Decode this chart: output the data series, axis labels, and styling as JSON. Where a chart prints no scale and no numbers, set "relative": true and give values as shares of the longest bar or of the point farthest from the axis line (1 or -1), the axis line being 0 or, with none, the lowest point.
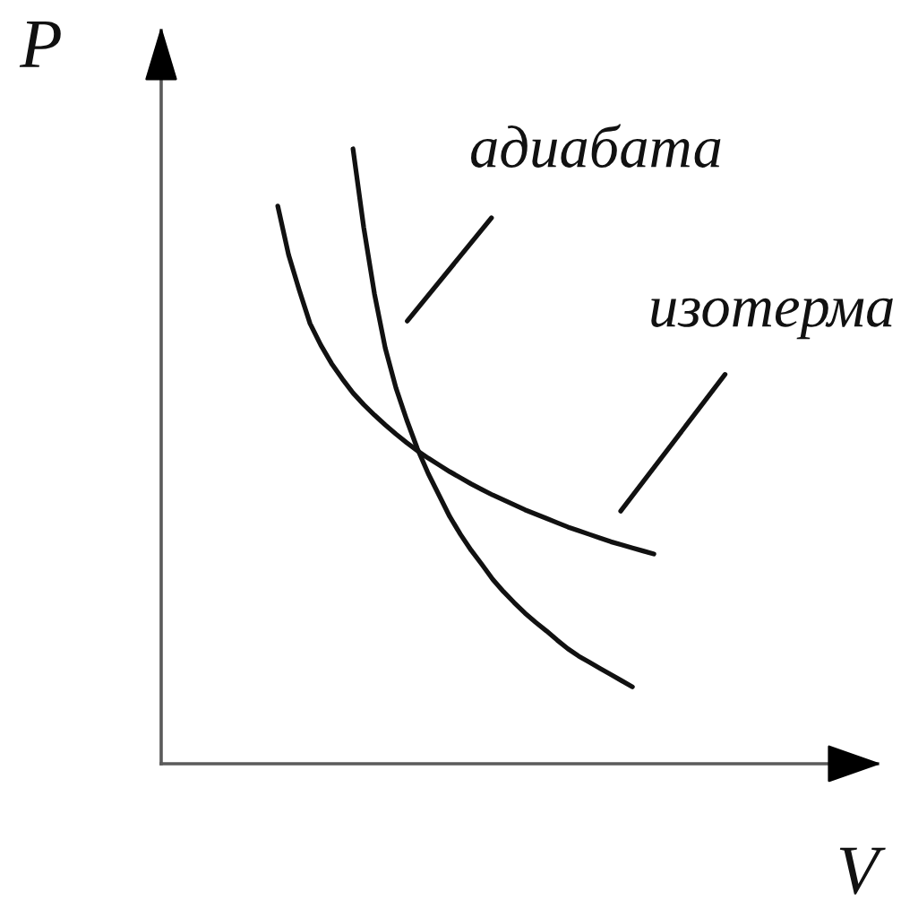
{
  "chart_data": {
    "type": "line",
    "xlabel": "V",
    "ylabel": "P",
    "relative": true,
    "categories": [
      null,
      null,
      null,
      null,
      null,
      null,
      null,
      null,
      null,
      null,
      null,
      null,
      null,
      null,
      null,
      null,
      null,
      null,
      null,
      null,
      null,
      null,
      null,
      null,
      null,
      null,
      null,
      null,
      null,
      null,
      null,
      null,
      null,
      null,
      null,
      null
    ],
    "series": [
      {
        "name": "адиабата",
        "color": "#111111",
        "values": [
          null,
          null,
          null,
          null,
          null,
          null,
          null,
          1.0,
          0.872,
          0.764,
          0.676,
          0.611,
          0.559,
          0.512,
          0.472,
          0.437,
          0.402,
          0.373,
          0.347,
          0.324,
          0.3,
          0.28,
          0.262,
          0.245,
          0.23,
          0.216,
          0.201,
          0.187,
          0.175,
          0.165,
          0.155,
          0.145,
          0.135,
          0.125,
          null,
          null
        ]
      },
      {
        "name": "изотерма",
        "color": "#111111",
        "values": [
          0.907,
          0.828,
          0.77,
          0.716,
          0.681,
          0.651,
          0.626,
          0.603,
          0.584,
          0.567,
          0.551,
          0.536,
          0.522,
          0.509,
          0.497,
          0.486,
          0.475,
          0.465,
          0.455,
          0.446,
          0.437,
          0.429,
          0.421,
          0.413,
          0.406,
          0.399,
          0.392,
          0.385,
          0.379,
          0.373,
          0.367,
          0.361,
          0.356,
          0.351,
          0.346,
          0.341
        ]
      }
    ]
  }
}
